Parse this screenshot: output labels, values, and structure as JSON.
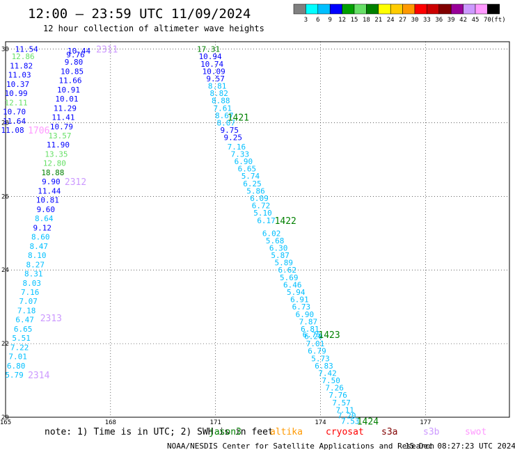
{
  "header": {
    "title": "12:00 — 23:59 UTC 11/09/2024",
    "subtitle": "12 hour collection of altimeter wave heights"
  },
  "legend_scale": {
    "colors": [
      "#808080",
      "#00ffff",
      "#00bfff",
      "#0000ff",
      "#00a000",
      "#66e066",
      "#008000",
      "#ffff00",
      "#ffcc00",
      "#ff9900",
      "#ff0000",
      "#cc0000",
      "#800000",
      "#990099",
      "#cc99ff",
      "#ff99ff",
      "#000000"
    ],
    "labels": [
      "3",
      "6",
      "9",
      "12",
      "15",
      "18",
      "21",
      "24",
      "27",
      "30",
      "33",
      "36",
      "39",
      "42",
      "45",
      "70"
    ],
    "unit": "(ft)"
  },
  "footer": {
    "note": "note:  1) Time is in UTC; 2) SWH is in feet",
    "missions": [
      {
        "name": "jason3",
        "color": "#008000"
      },
      {
        "name": "altika",
        "color": "#ff9900"
      },
      {
        "name": "cryosat",
        "color": "#ff0000"
      },
      {
        "name": "s3a",
        "color": "#800000"
      },
      {
        "name": "s3b",
        "color": "#cc99ff"
      },
      {
        "name": "swot",
        "color": "#ff99ff"
      }
    ],
    "credit": "NOAA/NESDIS Center for Satellite Applications and Research",
    "timestamp": "15 Dec 08:27:23 UTC 2024"
  },
  "chart_data": {
    "type": "scatter",
    "title": "12:00 — 23:59 UTC 11/09/2024",
    "subtitle": "12 hour collection of altimeter wave heights",
    "xlim": [
      165,
      179.4
    ],
    "ylim": [
      20,
      30.2
    ],
    "xticks": [
      165,
      168,
      171,
      174,
      177
    ],
    "yticks": [
      20,
      22,
      24,
      26,
      28,
      30
    ],
    "grid": true,
    "points": [
      {
        "x": 165.6,
        "y": 30.0,
        "v": "11.54",
        "c": "#0000ff"
      },
      {
        "x": 165.5,
        "y": 29.8,
        "v": "12.86",
        "c": "#66e066"
      },
      {
        "x": 165.45,
        "y": 29.55,
        "v": "11.82",
        "c": "#0000ff"
      },
      {
        "x": 165.4,
        "y": 29.3,
        "v": "11.03",
        "c": "#0000ff"
      },
      {
        "x": 165.35,
        "y": 29.05,
        "v": "10.37",
        "c": "#0000ff"
      },
      {
        "x": 165.3,
        "y": 28.8,
        "v": "10.99",
        "c": "#0000ff"
      },
      {
        "x": 165.3,
        "y": 28.55,
        "v": "12.11",
        "c": "#66e066"
      },
      {
        "x": 165.25,
        "y": 28.3,
        "v": "10.70",
        "c": "#0000ff"
      },
      {
        "x": 165.25,
        "y": 28.05,
        "v": "11.64",
        "c": "#0000ff"
      },
      {
        "x": 165.2,
        "y": 27.8,
        "v": "11.08",
        "c": "#0000ff"
      },
      {
        "x": 167.1,
        "y": 29.95,
        "v": "10.44",
        "c": "#0000ff"
      },
      {
        "x": 167.0,
        "y": 29.85,
        "v": "9.76",
        "c": "#0000ff"
      },
      {
        "x": 166.95,
        "y": 29.65,
        "v": "9.80",
        "c": "#0000ff"
      },
      {
        "x": 166.9,
        "y": 29.4,
        "v": "10.85",
        "c": "#0000ff"
      },
      {
        "x": 166.85,
        "y": 29.15,
        "v": "11.66",
        "c": "#0000ff"
      },
      {
        "x": 166.8,
        "y": 28.9,
        "v": "10.91",
        "c": "#0000ff"
      },
      {
        "x": 166.75,
        "y": 28.65,
        "v": "10.01",
        "c": "#0000ff"
      },
      {
        "x": 166.7,
        "y": 28.4,
        "v": "11.29",
        "c": "#0000ff"
      },
      {
        "x": 166.65,
        "y": 28.15,
        "v": "11.41",
        "c": "#0000ff"
      },
      {
        "x": 166.6,
        "y": 27.9,
        "v": "10.79",
        "c": "#0000ff"
      },
      {
        "x": 166.55,
        "y": 27.65,
        "v": "13.57",
        "c": "#66e066"
      },
      {
        "x": 166.5,
        "y": 27.4,
        "v": "11.90",
        "c": "#0000ff"
      },
      {
        "x": 166.45,
        "y": 27.15,
        "v": "13.35",
        "c": "#66e066"
      },
      {
        "x": 166.4,
        "y": 26.9,
        "v": "12.80",
        "c": "#66e066"
      },
      {
        "x": 166.35,
        "y": 26.65,
        "v": "18.88",
        "c": "#008000"
      },
      {
        "x": 166.3,
        "y": 26.4,
        "v": "9.90",
        "c": "#0000ff"
      },
      {
        "x": 166.25,
        "y": 26.15,
        "v": "11.44",
        "c": "#0000ff"
      },
      {
        "x": 166.2,
        "y": 25.9,
        "v": "10.81",
        "c": "#0000ff"
      },
      {
        "x": 166.15,
        "y": 25.65,
        "v": "9.60",
        "c": "#0000ff"
      },
      {
        "x": 166.1,
        "y": 25.4,
        "v": "8.64",
        "c": "#00bfff"
      },
      {
        "x": 166.05,
        "y": 25.15,
        "v": "9.12",
        "c": "#0000ff"
      },
      {
        "x": 166.0,
        "y": 24.9,
        "v": "8.60",
        "c": "#00bfff"
      },
      {
        "x": 165.95,
        "y": 24.65,
        "v": "8.47",
        "c": "#00bfff"
      },
      {
        "x": 165.9,
        "y": 24.4,
        "v": "8.10",
        "c": "#00bfff"
      },
      {
        "x": 165.85,
        "y": 24.15,
        "v": "8.27",
        "c": "#00bfff"
      },
      {
        "x": 165.8,
        "y": 23.9,
        "v": "8.31",
        "c": "#00bfff"
      },
      {
        "x": 165.75,
        "y": 23.65,
        "v": "8.03",
        "c": "#00bfff"
      },
      {
        "x": 165.7,
        "y": 23.4,
        "v": "7.16",
        "c": "#00bfff"
      },
      {
        "x": 165.65,
        "y": 23.15,
        "v": "7.07",
        "c": "#00bfff"
      },
      {
        "x": 165.6,
        "y": 22.9,
        "v": "7.18",
        "c": "#00bfff"
      },
      {
        "x": 165.55,
        "y": 22.65,
        "v": "6.47",
        "c": "#00bfff"
      },
      {
        "x": 165.5,
        "y": 22.4,
        "v": "6.65",
        "c": "#00bfff"
      },
      {
        "x": 165.45,
        "y": 22.15,
        "v": "5.51",
        "c": "#00bfff"
      },
      {
        "x": 165.4,
        "y": 21.9,
        "v": "7.22",
        "c": "#00bfff"
      },
      {
        "x": 165.35,
        "y": 21.65,
        "v": "7.01",
        "c": "#00bfff"
      },
      {
        "x": 165.3,
        "y": 21.4,
        "v": "6.80",
        "c": "#00bfff"
      },
      {
        "x": 165.25,
        "y": 21.15,
        "v": "5.79",
        "c": "#00bfff"
      },
      {
        "x": 170.8,
        "y": 30.0,
        "v": "17.31",
        "c": "#008000"
      },
      {
        "x": 170.85,
        "y": 29.8,
        "v": "10.94",
        "c": "#0000ff"
      },
      {
        "x": 170.9,
        "y": 29.6,
        "v": "10.74",
        "c": "#0000ff"
      },
      {
        "x": 170.95,
        "y": 29.4,
        "v": "10.09",
        "c": "#0000ff"
      },
      {
        "x": 171.0,
        "y": 29.2,
        "v": "9.57",
        "c": "#0000ff"
      },
      {
        "x": 171.05,
        "y": 29.0,
        "v": "8.81",
        "c": "#00bfff"
      },
      {
        "x": 171.1,
        "y": 28.8,
        "v": "8.82",
        "c": "#00bfff"
      },
      {
        "x": 171.15,
        "y": 28.6,
        "v": "8.88",
        "c": "#00bfff"
      },
      {
        "x": 171.2,
        "y": 28.4,
        "v": "7.61",
        "c": "#00bfff"
      },
      {
        "x": 171.25,
        "y": 28.2,
        "v": "8.67",
        "c": "#00bfff"
      },
      {
        "x": 171.3,
        "y": 28.0,
        "v": "8.07",
        "c": "#00bfff"
      },
      {
        "x": 171.4,
        "y": 27.8,
        "v": "9.75",
        "c": "#0000ff"
      },
      {
        "x": 171.5,
        "y": 27.6,
        "v": "9.25",
        "c": "#0000ff"
      },
      {
        "x": 171.6,
        "y": 27.35,
        "v": "7.16",
        "c": "#00bfff"
      },
      {
        "x": 171.7,
        "y": 27.15,
        "v": "7.33",
        "c": "#00bfff"
      },
      {
        "x": 171.8,
        "y": 26.95,
        "v": "6.90",
        "c": "#00bfff"
      },
      {
        "x": 171.9,
        "y": 26.75,
        "v": "6.65",
        "c": "#00bfff"
      },
      {
        "x": 172.0,
        "y": 26.55,
        "v": "5.74",
        "c": "#00bfff"
      },
      {
        "x": 172.05,
        "y": 26.35,
        "v": "6.25",
        "c": "#00bfff"
      },
      {
        "x": 172.15,
        "y": 26.15,
        "v": "5.86",
        "c": "#00bfff"
      },
      {
        "x": 172.25,
        "y": 25.95,
        "v": "6.09",
        "c": "#00bfff"
      },
      {
        "x": 172.3,
        "y": 25.75,
        "v": "6.72",
        "c": "#00bfff"
      },
      {
        "x": 172.35,
        "y": 25.55,
        "v": "5.10",
        "c": "#00bfff"
      },
      {
        "x": 172.45,
        "y": 25.35,
        "v": "6.17",
        "c": "#00bfff"
      },
      {
        "x": 172.6,
        "y": 25.0,
        "v": "6.02",
        "c": "#00bfff"
      },
      {
        "x": 172.7,
        "y": 24.8,
        "v": "5.68",
        "c": "#00bfff"
      },
      {
        "x": 172.8,
        "y": 24.6,
        "v": "6.30",
        "c": "#00bfff"
      },
      {
        "x": 172.85,
        "y": 24.4,
        "v": "5.87",
        "c": "#00bfff"
      },
      {
        "x": 172.95,
        "y": 24.2,
        "v": "5.89",
        "c": "#00bfff"
      },
      {
        "x": 173.05,
        "y": 24.0,
        "v": "6.62",
        "c": "#00bfff"
      },
      {
        "x": 173.1,
        "y": 23.8,
        "v": "5.69",
        "c": "#00bfff"
      },
      {
        "x": 173.2,
        "y": 23.6,
        "v": "6.46",
        "c": "#00bfff"
      },
      {
        "x": 173.3,
        "y": 23.4,
        "v": "5.94",
        "c": "#00bfff"
      },
      {
        "x": 173.4,
        "y": 23.2,
        "v": "6.91",
        "c": "#00bfff"
      },
      {
        "x": 173.45,
        "y": 23.0,
        "v": "6.73",
        "c": "#00bfff"
      },
      {
        "x": 173.55,
        "y": 22.8,
        "v": "6.90",
        "c": "#00bfff"
      },
      {
        "x": 173.65,
        "y": 22.6,
        "v": "7.87",
        "c": "#00bfff"
      },
      {
        "x": 173.7,
        "y": 22.4,
        "v": "6.81",
        "c": "#00bfff"
      },
      {
        "x": 173.75,
        "y": 22.25,
        "v": "6.75",
        "c": "#00bfff"
      },
      {
        "x": 173.8,
        "y": 22.2,
        "v": "6.20",
        "c": "#00bfff"
      },
      {
        "x": 173.85,
        "y": 22.0,
        "v": "7.01",
        "c": "#00bfff"
      },
      {
        "x": 173.9,
        "y": 21.8,
        "v": "6.79",
        "c": "#00bfff"
      },
      {
        "x": 174.0,
        "y": 21.6,
        "v": "5.73",
        "c": "#00bfff"
      },
      {
        "x": 174.1,
        "y": 21.4,
        "v": "6.83",
        "c": "#00bfff"
      },
      {
        "x": 174.2,
        "y": 21.2,
        "v": "7.42",
        "c": "#00bfff"
      },
      {
        "x": 174.3,
        "y": 21.0,
        "v": "7.50",
        "c": "#00bfff"
      },
      {
        "x": 174.4,
        "y": 20.8,
        "v": "7.26",
        "c": "#00bfff"
      },
      {
        "x": 174.5,
        "y": 20.6,
        "v": "7.76",
        "c": "#00bfff"
      },
      {
        "x": 174.6,
        "y": 20.4,
        "v": "7.57",
        "c": "#00bfff"
      },
      {
        "x": 174.7,
        "y": 20.2,
        "v": "7.11",
        "c": "#00bfff"
      },
      {
        "x": 174.75,
        "y": 20.05,
        "v": "7.20",
        "c": "#00bfff"
      },
      {
        "x": 174.85,
        "y": 19.9,
        "v": "7.53",
        "c": "#00bfff"
      }
    ],
    "pass_labels": [
      {
        "x": 167.9,
        "y": 30.0,
        "text": "2311",
        "c": "#cc99ff"
      },
      {
        "x": 171.65,
        "y": 28.15,
        "text": "1421",
        "c": "#008000"
      },
      {
        "x": 165.95,
        "y": 27.8,
        "text": "1706",
        "c": "#ff99ff"
      },
      {
        "x": 167.0,
        "y": 26.4,
        "text": "2312",
        "c": "#cc99ff"
      },
      {
        "x": 173.0,
        "y": 25.35,
        "text": "1422",
        "c": "#008000"
      },
      {
        "x": 166.3,
        "y": 22.7,
        "text": "2313",
        "c": "#cc99ff"
      },
      {
        "x": 174.25,
        "y": 22.25,
        "text": "1423",
        "c": "#008000"
      },
      {
        "x": 165.95,
        "y": 21.15,
        "text": "2314",
        "c": "#cc99ff"
      },
      {
        "x": 175.35,
        "y": 19.9,
        "text": "1424",
        "c": "#008000"
      }
    ]
  }
}
